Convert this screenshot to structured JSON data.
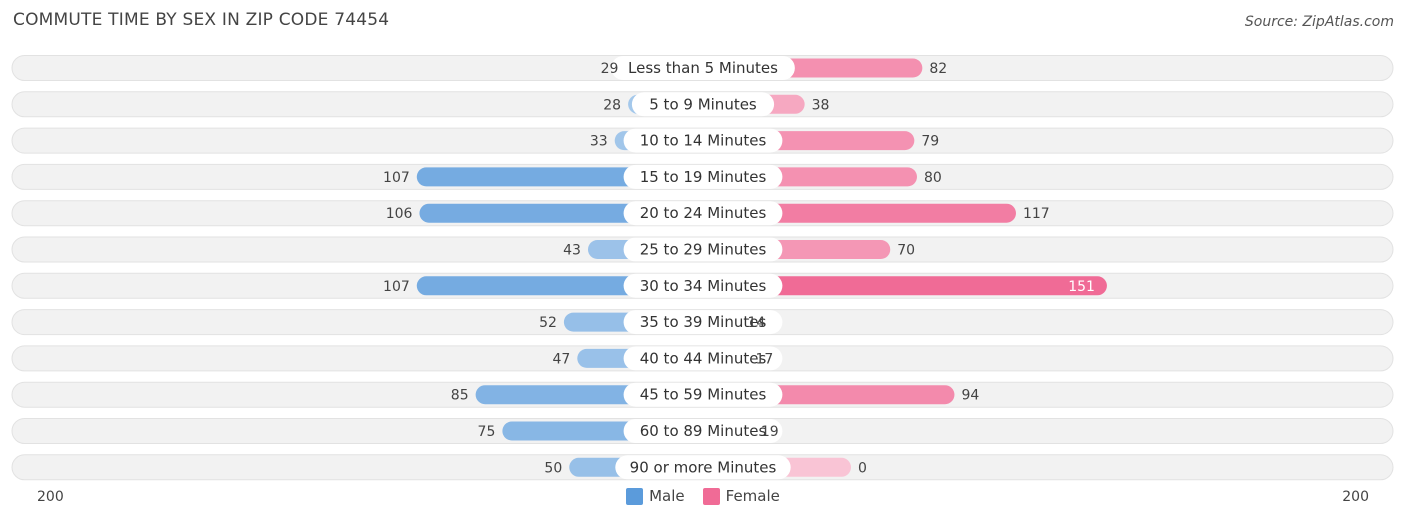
{
  "chart_data": {
    "type": "bar",
    "orientation": "diverging-horizontal",
    "title": "COMMUTE TIME BY SEX IN ZIP CODE 74454",
    "source": "Source: ZipAtlas.com",
    "categories": [
      "Less than 5 Minutes",
      "5 to 9 Minutes",
      "10 to 14 Minutes",
      "15 to 19 Minutes",
      "20 to 24 Minutes",
      "25 to 29 Minutes",
      "30 to 34 Minutes",
      "35 to 39 Minutes",
      "40 to 44 Minutes",
      "45 to 59 Minutes",
      "60 to 89 Minutes",
      "90 or more Minutes"
    ],
    "series": [
      {
        "name": "Male",
        "color": "#5b9bdb",
        "values": [
          29,
          28,
          33,
          107,
          106,
          43,
          107,
          52,
          47,
          85,
          75,
          50
        ]
      },
      {
        "name": "Female",
        "color": "#f06b96",
        "values": [
          82,
          38,
          79,
          80,
          117,
          70,
          151,
          14,
          17,
          94,
          19,
          0
        ]
      }
    ],
    "xlim": [
      -200,
      200
    ],
    "axis_labels": {
      "left": "200",
      "right": "200"
    },
    "legend_position": "bottom-center"
  }
}
